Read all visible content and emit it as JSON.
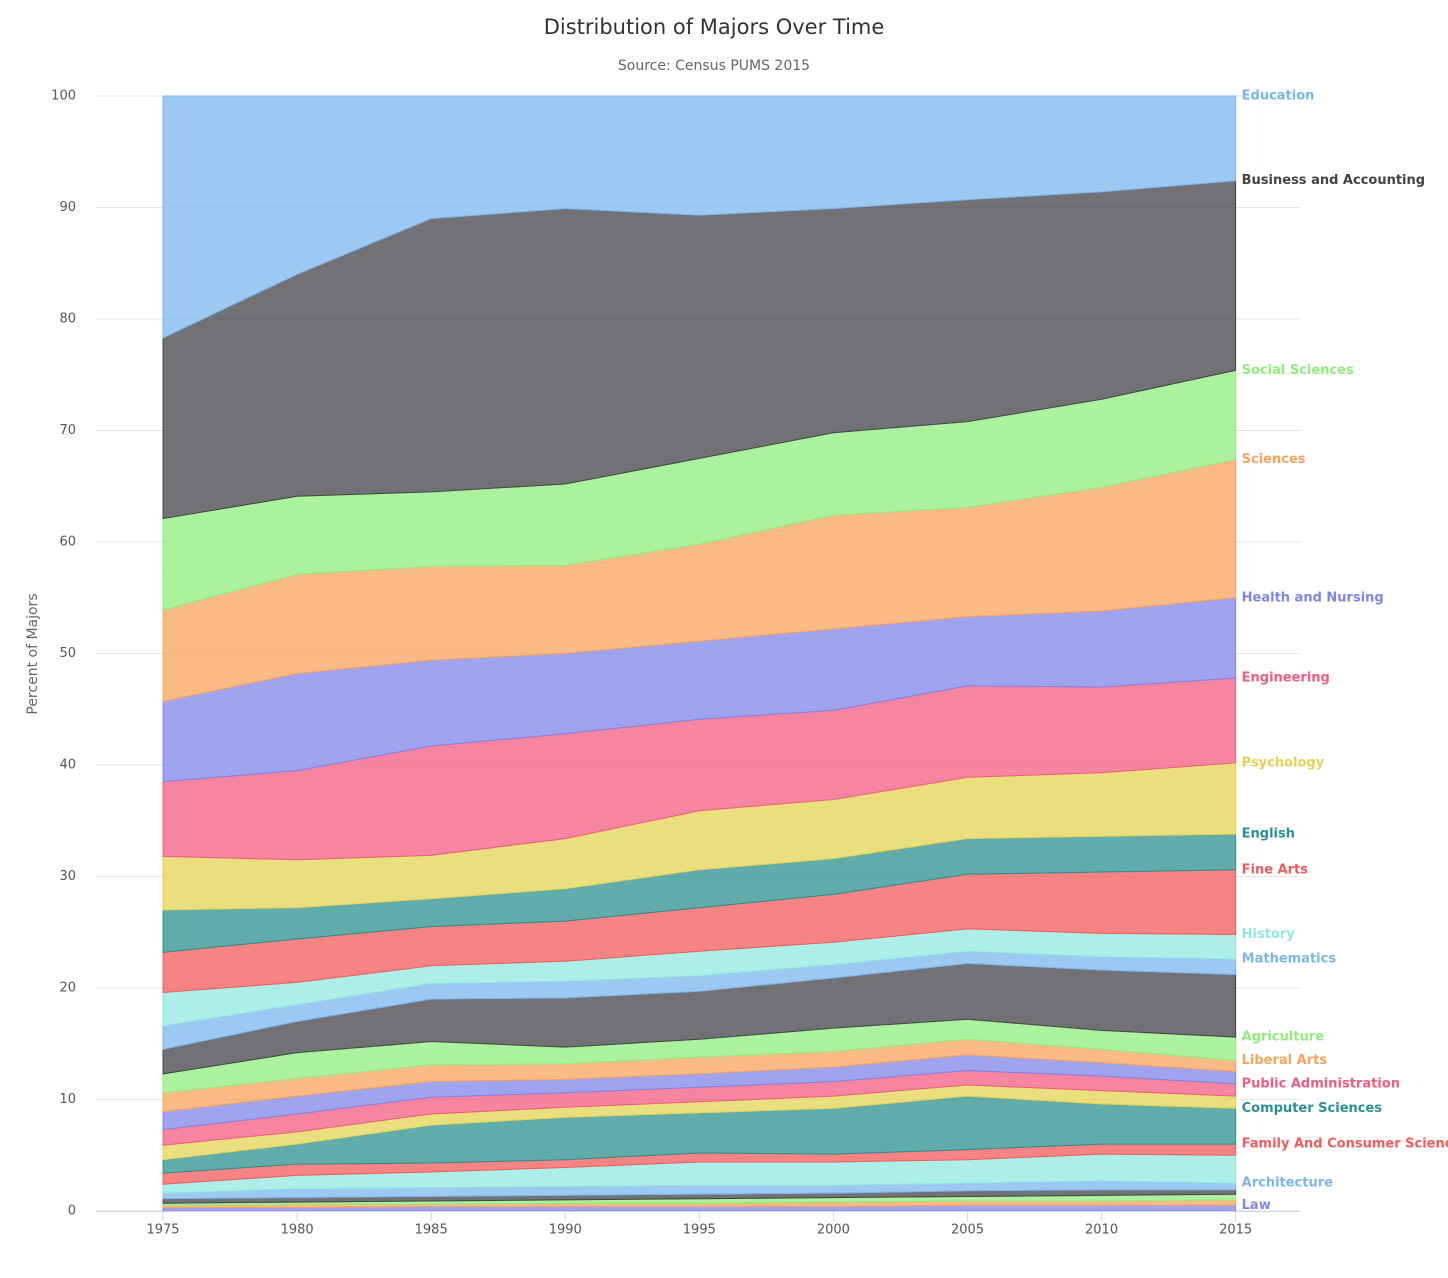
{
  "chart_data": {
    "type": "area",
    "stacked": true,
    "title": "Distribution of Majors Over Time",
    "subtitle": "Source: Census PUMS 2015",
    "y_label": "Percent of Majors",
    "x": [
      1975,
      1980,
      1985,
      1990,
      1995,
      2000,
      2005,
      2010,
      2015
    ],
    "xlim": [
      1972.5,
      2017.4
    ],
    "xticks": [
      1975,
      1980,
      1985,
      1990,
      1995,
      2000,
      2005,
      2010,
      2015
    ],
    "ylim": [
      0,
      100
    ],
    "yticks": [
      0,
      10,
      20,
      30,
      40,
      50,
      60,
      70,
      80,
      90,
      100
    ],
    "grid": true,
    "series": [
      {
        "name": "Law",
        "color": "#8085e9",
        "values": [
          0.3,
          0.3,
          0.4,
          0.4,
          0.4,
          0.4,
          0.5,
          0.5,
          0.5
        ]
      },
      {
        "name": null,
        "color": "#f7a35c",
        "values": [
          0.2,
          0.3,
          0.2,
          0.3,
          0.3,
          0.4,
          0.4,
          0.4,
          0.5
        ]
      },
      {
        "name": null,
        "color": "#90ed7d",
        "values": [
          0.2,
          0.2,
          0.3,
          0.3,
          0.4,
          0.4,
          0.4,
          0.5,
          0.5
        ]
      },
      {
        "name": null,
        "color": "#434348",
        "values": [
          0.4,
          0.4,
          0.4,
          0.4,
          0.4,
          0.4,
          0.5,
          0.5,
          0.4
        ]
      },
      {
        "name": "Architecture",
        "color": "#7cb5ec",
        "values": [
          0.5,
          0.8,
          0.8,
          0.8,
          0.8,
          0.7,
          0.7,
          0.8,
          0.6
        ]
      },
      {
        "name": null,
        "color": "#91e8e1",
        "values": [
          0.8,
          1.2,
          1.4,
          1.7,
          2.1,
          2.1,
          2.1,
          2.4,
          2.5
        ]
      },
      {
        "name": "Family And Consumer Sciences",
        "color": "#f45b5b",
        "values": [
          1.0,
          1.0,
          0.8,
          0.7,
          0.8,
          0.7,
          0.9,
          0.9,
          1.0
        ]
      },
      {
        "name": "Computer Sciences",
        "color": "#2b908f",
        "values": [
          1.2,
          1.8,
          3.4,
          3.8,
          3.6,
          4.1,
          4.8,
          3.6,
          3.2
        ]
      },
      {
        "name": null,
        "color": "#e4d354",
        "values": [
          1.3,
          1.1,
          1.0,
          0.9,
          1.0,
          1.1,
          1.0,
          1.2,
          1.1
        ]
      },
      {
        "name": "Public Administration",
        "color": "#f15c80",
        "values": [
          1.4,
          1.6,
          1.5,
          1.3,
          1.3,
          1.3,
          1.3,
          1.3,
          1.1
        ]
      },
      {
        "name": null,
        "color": "#8085e9",
        "values": [
          1.6,
          1.6,
          1.4,
          1.2,
          1.2,
          1.3,
          1.4,
          1.2,
          1.1
        ]
      },
      {
        "name": "Liberal Arts",
        "color": "#f7a35c",
        "values": [
          1.7,
          1.6,
          1.5,
          1.4,
          1.5,
          1.4,
          1.4,
          1.2,
          1.0
        ]
      },
      {
        "name": "Agriculture",
        "color": "#90ed7d",
        "values": [
          1.7,
          2.3,
          2.1,
          1.5,
          1.6,
          2.1,
          1.8,
          1.7,
          2.1
        ]
      },
      {
        "name": null,
        "color": "#434348",
        "values": [
          2.2,
          2.8,
          3.8,
          4.4,
          4.3,
          4.5,
          5.0,
          5.4,
          5.6
        ]
      },
      {
        "name": "Mathematics",
        "color": "#7cb5ec",
        "values": [
          2.1,
          1.5,
          1.4,
          1.5,
          1.4,
          1.2,
          1.1,
          1.2,
          1.4
        ]
      },
      {
        "name": "History",
        "color": "#91e8e1",
        "values": [
          3.0,
          2.0,
          1.6,
          1.8,
          2.2,
          2.0,
          2.0,
          2.1,
          2.2
        ]
      },
      {
        "name": "Fine Arts",
        "color": "#f45b5b",
        "values": [
          3.6,
          3.9,
          3.5,
          3.6,
          3.9,
          4.3,
          4.9,
          5.5,
          5.8
        ]
      },
      {
        "name": "English",
        "color": "#2b908f",
        "values": [
          3.8,
          2.8,
          2.5,
          2.9,
          3.4,
          3.2,
          3.2,
          3.2,
          3.2
        ]
      },
      {
        "name": "Psychology",
        "color": "#e4d354",
        "values": [
          4.8,
          4.3,
          3.9,
          4.5,
          5.3,
          5.3,
          5.5,
          5.7,
          6.4
        ]
      },
      {
        "name": "Engineering",
        "color": "#f15c80",
        "values": [
          6.7,
          8.0,
          9.8,
          9.4,
          8.2,
          8.0,
          8.2,
          7.7,
          7.6
        ]
      },
      {
        "name": "Health and Nursing",
        "color": "#8085e9",
        "values": [
          7.2,
          8.7,
          7.7,
          7.2,
          7.0,
          7.3,
          6.2,
          6.8,
          7.2
        ]
      },
      {
        "name": "Sciences",
        "color": "#f7a35c",
        "values": [
          8.2,
          8.9,
          8.4,
          7.9,
          8.7,
          10.2,
          9.8,
          11.1,
          12.4
        ]
      },
      {
        "name": "Social Sciences",
        "color": "#90ed7d",
        "values": [
          8.2,
          7.0,
          6.7,
          7.3,
          7.7,
          7.4,
          7.7,
          7.9,
          8.0
        ]
      },
      {
        "name": "Business and Accounting",
        "color": "#434348",
        "values": [
          16.2,
          19.9,
          24.5,
          24.7,
          21.8,
          20.1,
          19.9,
          18.6,
          17.0
        ]
      },
      {
        "name": "Education",
        "color": "#7cb5ec",
        "values": [
          21.7,
          16.0,
          11.0,
          10.1,
          10.7,
          10.1,
          9.3,
          8.6,
          7.6
        ]
      }
    ]
  }
}
